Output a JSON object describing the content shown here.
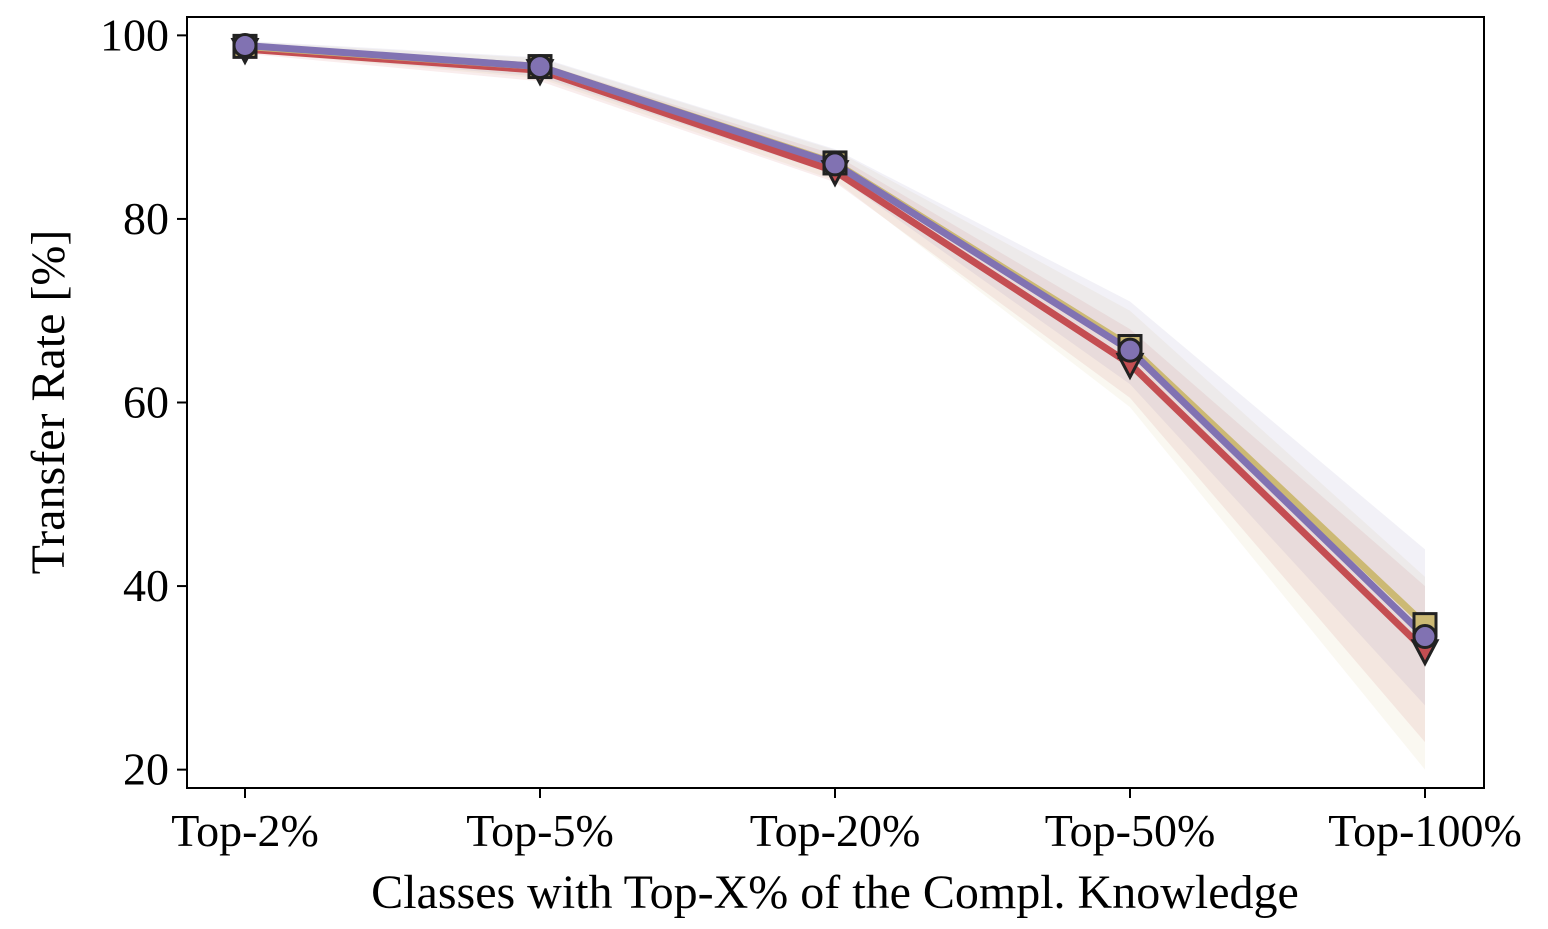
{
  "chart_data": {
    "type": "line",
    "title": "",
    "xlabel": "Classes with Top-X% of the Compl. Knowledge",
    "ylabel": "Transfer Rate [%]",
    "categories": [
      "Top-2%",
      "Top-5%",
      "Top-20%",
      "Top-50%",
      "Top-100%"
    ],
    "ylim": [
      18,
      102
    ],
    "yticks": [
      "20",
      "40",
      "60",
      "80",
      "100"
    ],
    "grid": false,
    "legend": "none",
    "series": [
      {
        "marker": "triangle-down",
        "color": "#c44e52",
        "values": [
          98.5,
          96.2,
          85.2,
          64.2,
          33.0
        ],
        "lower": [
          98.0,
          95.0,
          84.0,
          60.5,
          23.0
        ],
        "upper": [
          99.0,
          97.0,
          87.0,
          68.0,
          40.0
        ]
      },
      {
        "marker": "square",
        "color": "#ccb974",
        "values": [
          98.8,
          96.6,
          86.1,
          66.1,
          35.8
        ],
        "lower": [
          98.2,
          95.3,
          84.2,
          59.5,
          20.0
        ],
        "upper": [
          99.3,
          97.5,
          87.5,
          70.0,
          41.0
        ]
      },
      {
        "marker": "circle",
        "color": "#8172b2",
        "values": [
          98.9,
          96.6,
          86.0,
          65.7,
          34.5
        ],
        "lower": [
          98.3,
          95.5,
          84.8,
          62.0,
          27.0
        ],
        "upper": [
          99.4,
          97.6,
          87.6,
          71.0,
          44.0
        ]
      }
    ]
  }
}
